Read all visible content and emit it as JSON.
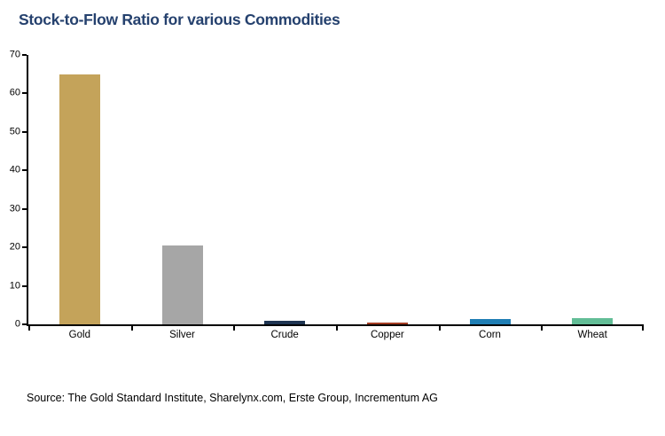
{
  "title": "Stock-to-Flow Ratio for various Commodities",
  "source": "Source: The Gold Standard Institute, Sharelynx.com, Erste Group, Incrementum AG",
  "chart_data": {
    "type": "bar",
    "title": "Stock-to-Flow Ratio for various Commodities",
    "categories": [
      "Gold",
      "Silver",
      "Crude",
      "Copper",
      "Corn",
      "Wheat"
    ],
    "values": [
      65,
      20.5,
      0.9,
      0.4,
      1.4,
      1.7
    ],
    "bar_colors": [
      "#C4A35A",
      "#A6A6A6",
      "#1F3552",
      "#A33C22",
      "#1F7EB4",
      "#62BD96"
    ],
    "xlabel": "",
    "ylabel": "",
    "ylim": [
      0,
      70
    ],
    "yticks": [
      0,
      10,
      20,
      30,
      40,
      50,
      60,
      70
    ],
    "grid": false,
    "legend": false,
    "title_color": "#25416E",
    "axis_color": "#000000"
  }
}
